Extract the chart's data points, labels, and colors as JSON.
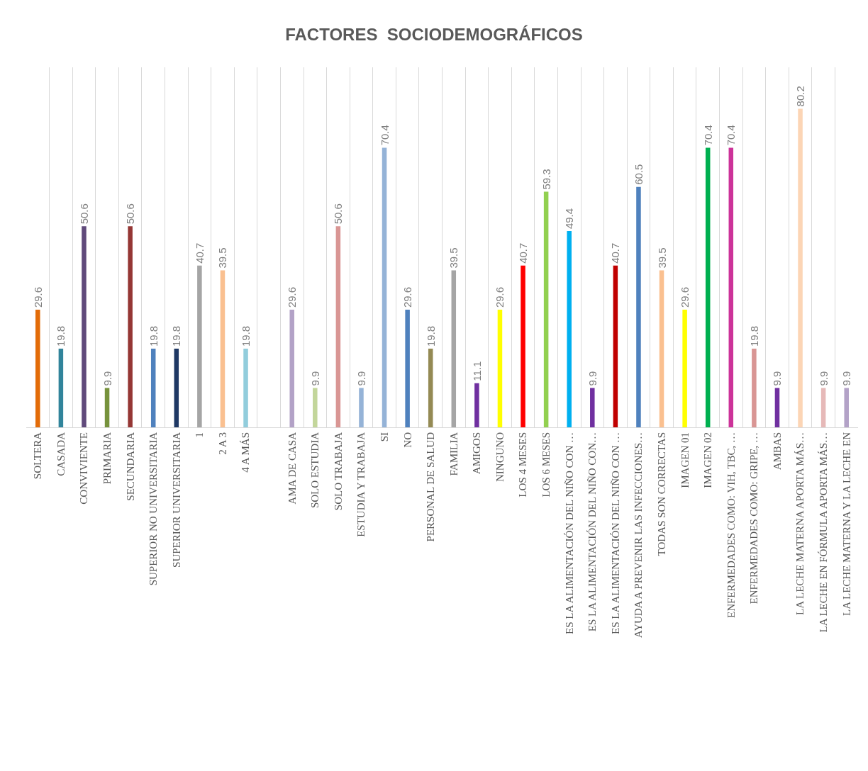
{
  "chart_data": {
    "type": "bar",
    "title": "FACTORES  SOCIODEMOGRÁFICOS",
    "categories": [
      "SOLTERA",
      "CASADA",
      "CONVIVIENTE",
      "PRIMARIA",
      "SECUNDARIA",
      "SUPERIOR NO UNIVERSITARIA",
      "SUPERIOR UNIVERSITARIA",
      "1",
      "2 A 3",
      "4 A MÁS",
      null,
      "AMA DE CASA",
      "SOLO ESTUDIA",
      "SOLO TRABAJA",
      "ESTUDIA Y TRABAJA",
      "SI",
      "NO",
      "PERSONAL DE SALUD",
      "FAMILIA",
      "AMIGOS",
      "NINGUNO",
      "LOS 4 MESES",
      "LOS 6 MESES",
      "ES LA ALIMENTACIÓN DEL NIÑO CON …",
      "ES LA ALIMENTACIÓN DEL NIÑO CON…",
      "ES LA ALIMENTACIÓN DEL NIÑO CON …",
      "AYUDA A PREVENIR LAS INFECCIONES…",
      "TODAS SON CORRECTAS",
      "IMAGEN 01",
      "IMAGEN 02",
      "ENFERMEDADES COMO: VIH, TBC, …",
      "ENFERMEDADES COMO: GRIPE, …",
      "AMBAS",
      "LA LECHE MATERNA APORTA MÁS…",
      "LA LECHE EN FÓRMULA APORTA MÁS…",
      "LA LECHE MATERNA Y LA LECHE EN"
    ],
    "values": [
      29.6,
      19.8,
      50.6,
      9.9,
      50.6,
      19.8,
      19.8,
      40.7,
      39.5,
      19.8,
      null,
      29.6,
      9.9,
      50.6,
      9.9,
      70.4,
      29.6,
      19.8,
      39.5,
      11.1,
      29.6,
      40.7,
      59.3,
      49.4,
      9.9,
      40.7,
      60.5,
      39.5,
      29.6,
      70.4,
      70.4,
      19.8,
      9.9,
      80.2,
      9.9,
      9.9
    ],
    "colors": [
      "#e36c09",
      "#31849b",
      "#604a7b",
      "#76923c",
      "#953735",
      "#4f81bd",
      "#1f3864",
      "#a5a5a5",
      "#fac090",
      "#92cddc",
      "#ffffff",
      "#b3a2c7",
      "#c3d69b",
      "#d99694",
      "#95b3d7",
      "#95b3d7",
      "#4f81bd",
      "#948a54",
      "#a5a5a5",
      "#7030a0",
      "#ffff00",
      "#ff0000",
      "#92d050",
      "#00b0f0",
      "#7030a0",
      "#c00000",
      "#4f81bd",
      "#fac090",
      "#ffff00",
      "#00b050",
      "#cc3399",
      "#d99694",
      "#7030a0",
      "#fcd5b5",
      "#e6b9b8",
      "#b3a2c7"
    ],
    "data_labels": true,
    "grid": "x"
  }
}
